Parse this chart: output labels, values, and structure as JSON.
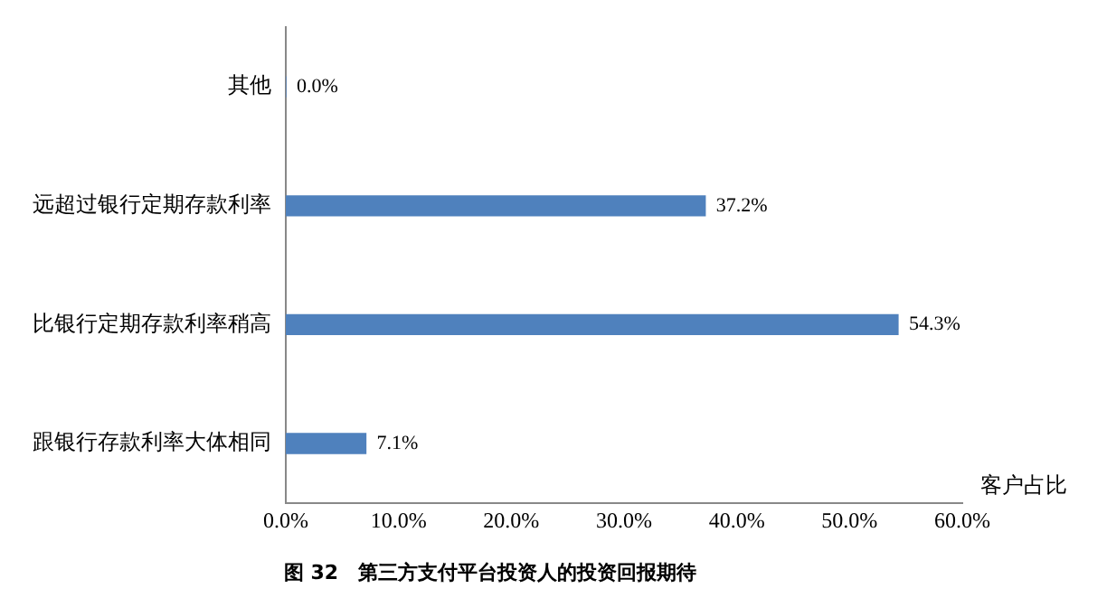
{
  "chart_data": {
    "type": "bar",
    "orientation": "horizontal",
    "title": "图 32　第三方支付平台投资人的投资回报期待",
    "xlabel": "客户占比",
    "categories": [
      "其他",
      "远超过银行定期存款利率",
      "比银行定期存款利率稍高",
      "跟银行存款利率大体相同"
    ],
    "values": [
      0,
      37.2,
      54.3,
      7.1
    ],
    "color": "#4f81bd",
    "value_labels": [
      "0.0%",
      "37.2%",
      "54.3%",
      "7.1%"
    ],
    "xlim": [
      0,
      60
    ],
    "xticks": [
      {
        "value": 0,
        "label": "0.0%"
      },
      {
        "value": 10,
        "label": "10.0%"
      },
      {
        "value": 20,
        "label": "20.0%"
      },
      {
        "value": 30,
        "label": "30.0%"
      },
      {
        "value": 40,
        "label": "40.0%"
      },
      {
        "value": 50,
        "label": "50.0%"
      },
      {
        "value": 60,
        "label": "60.0%"
      }
    ],
    "grid": false,
    "legend": false
  }
}
